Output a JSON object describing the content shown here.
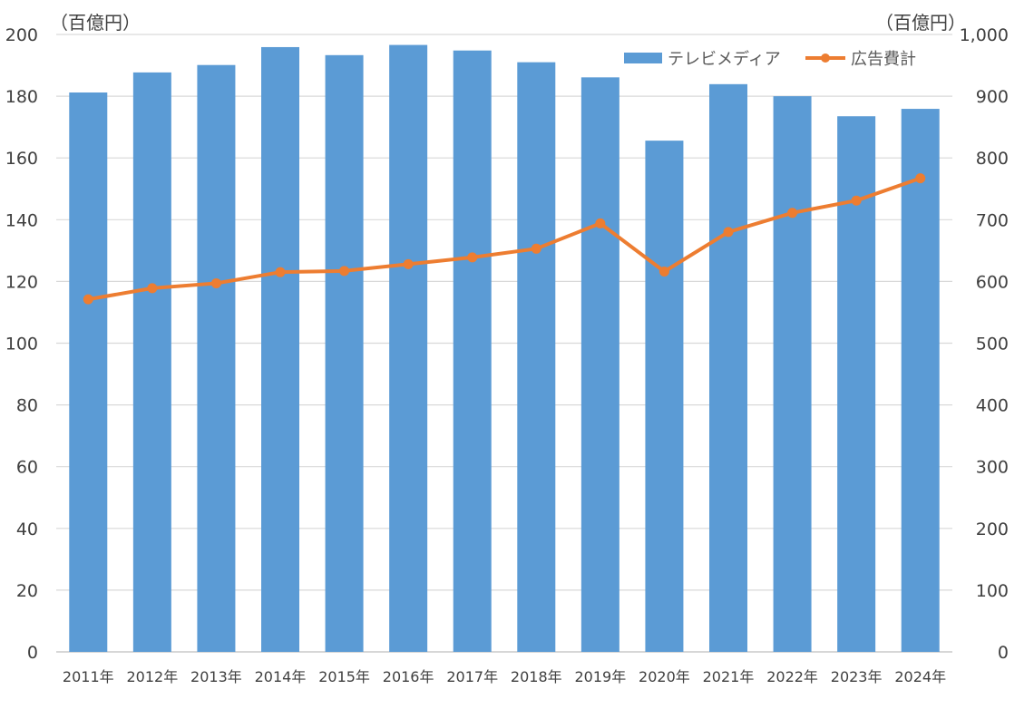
{
  "chart_data": {
    "type": "bar",
    "categories": [
      "2011年",
      "2012年",
      "2013年",
      "2014年",
      "2015年",
      "2016年",
      "2017年",
      "2018年",
      "2019年",
      "2020年",
      "2021年",
      "2022年",
      "2023年",
      "2024年"
    ],
    "y_left": {
      "unit": "（百億円）",
      "ylim": [
        0,
        200
      ],
      "ticks": [
        "0",
        "20",
        "40",
        "60",
        "80",
        "100",
        "120",
        "140",
        "160",
        "180",
        "200"
      ]
    },
    "y_right": {
      "unit": "（百億円）",
      "ylim": [
        0,
        1000
      ],
      "ticks": [
        "0",
        "100",
        "200",
        "300",
        "400",
        "500",
        "600",
        "700",
        "800",
        "900",
        "1,000"
      ]
    },
    "series": [
      {
        "name": "テレビメディア",
        "type": "bar",
        "axis": "left",
        "color": "#5B9BD5",
        "values": [
          181.2,
          187.7,
          190.1,
          195.9,
          193.3,
          196.6,
          194.8,
          191.0,
          186.1,
          165.6,
          183.9,
          180.0,
          173.5,
          175.9
        ]
      },
      {
        "name": "広告費計",
        "type": "line",
        "axis": "right",
        "color": "#ED7D31",
        "values": [
          571,
          589,
          597,
          615,
          617,
          628,
          639,
          653,
          694,
          616,
          680,
          711,
          731,
          767
        ]
      }
    ],
    "grid": true,
    "legend": "top-right"
  }
}
